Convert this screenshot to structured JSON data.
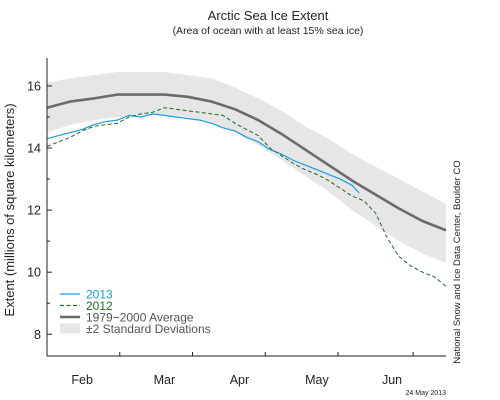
{
  "chart_data": {
    "type": "line",
    "title": "Arctic Sea Ice Extent",
    "subtitle": "(Area of ocean with at least 15% sea ice)",
    "ylabel": "Extent (millions of square kilometers)",
    "xlabel": "",
    "ylim": [
      7.3,
      16.9
    ],
    "xlim": [
      10,
      180
    ],
    "y_ticks": [
      {
        "value": 8,
        "label": "8"
      },
      {
        "value": 10,
        "label": "10"
      },
      {
        "value": 12,
        "label": "12"
      },
      {
        "value": 14,
        "label": "14"
      },
      {
        "value": 16,
        "label": "16"
      }
    ],
    "x_ticks": [
      {
        "value": 25,
        "label": "Feb"
      },
      {
        "value": 60,
        "label": "Mar"
      },
      {
        "value": 92,
        "label": "Apr"
      },
      {
        "value": 125,
        "label": "May"
      },
      {
        "value": 157,
        "label": "Jun"
      }
    ],
    "x_minor_ticks": [
      10,
      41,
      72,
      103,
      134,
      166
    ],
    "grid": false,
    "legend_position": "bottom-left",
    "band": {
      "name": "±2 Standard Deviations",
      "color": "#e6e6e6",
      "x": [
        10,
        20,
        30,
        40,
        50,
        60,
        70,
        80,
        90,
        100,
        110,
        120,
        130,
        140,
        150,
        160,
        170,
        180
      ],
      "upper": [
        16.1,
        16.25,
        16.35,
        16.45,
        16.45,
        16.45,
        16.35,
        16.25,
        15.95,
        15.6,
        15.2,
        14.7,
        14.3,
        13.8,
        13.4,
        13.0,
        12.6,
        12.2
      ],
      "lower": [
        14.5,
        14.75,
        14.9,
        15.0,
        15.05,
        15.05,
        15.0,
        14.8,
        14.5,
        14.1,
        13.6,
        13.1,
        12.6,
        12.0,
        11.5,
        11.0,
        10.6,
        10.3
      ]
    },
    "series": [
      {
        "name": "1979–2000 Average",
        "color": "#6b6b6b",
        "dash": "solid",
        "width": 2.6,
        "x": [
          10,
          20,
          30,
          40,
          50,
          60,
          70,
          80,
          90,
          100,
          110,
          120,
          130,
          140,
          150,
          160,
          170,
          180
        ],
        "y": [
          15.3,
          15.5,
          15.6,
          15.72,
          15.72,
          15.72,
          15.65,
          15.5,
          15.25,
          14.9,
          14.45,
          13.95,
          13.45,
          12.95,
          12.5,
          12.05,
          11.65,
          11.35
        ]
      },
      {
        "name": "2013",
        "color": "#1a9fe0",
        "dash": "solid",
        "width": 1.2,
        "x": [
          10,
          15,
          20,
          25,
          30,
          35,
          40,
          45,
          50,
          55,
          60,
          65,
          70,
          75,
          80,
          85,
          90,
          95,
          100,
          105,
          110,
          115,
          120,
          125,
          130,
          135,
          140,
          143
        ],
        "y": [
          14.3,
          14.4,
          14.5,
          14.6,
          14.75,
          14.85,
          14.9,
          15.05,
          15.0,
          15.1,
          15.05,
          15.0,
          14.95,
          14.9,
          14.8,
          14.65,
          14.55,
          14.35,
          14.2,
          13.95,
          13.8,
          13.6,
          13.45,
          13.3,
          13.15,
          13.0,
          12.8,
          12.55
        ]
      },
      {
        "name": "2012",
        "color": "#1e6b28",
        "dash": "dashed",
        "width": 1.0,
        "x": [
          10,
          15,
          20,
          25,
          30,
          35,
          40,
          45,
          50,
          55,
          60,
          65,
          70,
          75,
          80,
          85,
          90,
          95,
          100,
          105,
          110,
          115,
          120,
          125,
          130,
          135,
          140,
          145,
          150,
          155,
          160,
          165,
          170,
          175,
          180
        ],
        "y": [
          14.05,
          14.2,
          14.35,
          14.55,
          14.7,
          14.75,
          14.8,
          15.0,
          15.1,
          15.15,
          15.3,
          15.25,
          15.2,
          15.15,
          15.1,
          15.05,
          14.8,
          14.6,
          14.4,
          14.0,
          13.75,
          13.5,
          13.3,
          13.15,
          12.95,
          12.7,
          12.45,
          12.3,
          11.9,
          11.1,
          10.5,
          10.2,
          10.0,
          9.85,
          9.55
        ]
      }
    ],
    "legend": [
      {
        "label": "2013",
        "color": "#1a9fe0",
        "text_color": "#1a9fe0",
        "style": "solid"
      },
      {
        "label": "2012",
        "color": "#1e6b28",
        "text_color": "#1e6b28",
        "style": "dashed"
      },
      {
        "label": "1979−2000 Average",
        "color": "#6b6b6b",
        "text_color": "#555555",
        "style": "thick"
      },
      {
        "label": "±2 Standard Deviations",
        "color": "#e6e6e6",
        "text_color": "#555555",
        "style": "box"
      }
    ],
    "credit": "National Snow and Ice Data Center, Boulder CO",
    "date": "24 May 2013"
  }
}
